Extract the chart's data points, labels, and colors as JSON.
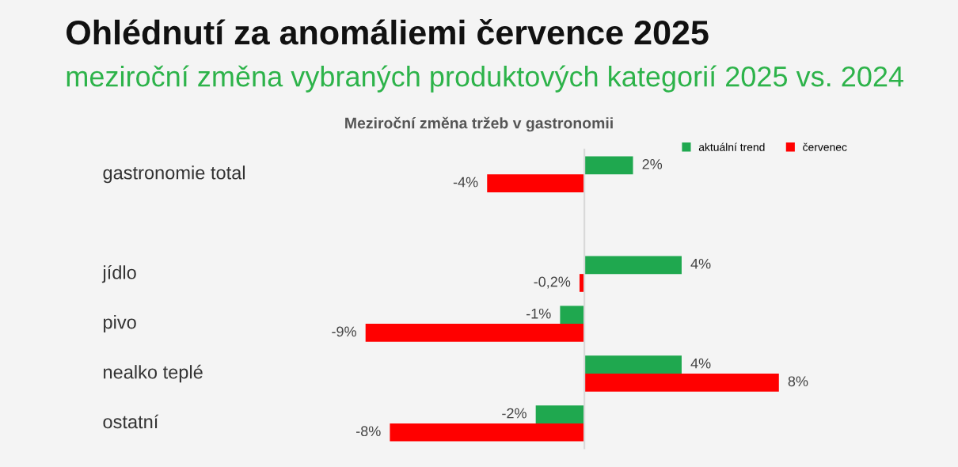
{
  "chart_data": {
    "type": "bar",
    "orientation": "horizontal",
    "title": "Meziroční změna tržeb v gastronomii",
    "annotations": [
      "Ohlédnutí za anomáliemi července 2025",
      "meziroční změna vybraných produktových kategorií 2025 vs. 2024"
    ],
    "categories": [
      "gastronomie total",
      null,
      "jídlo",
      "pivo",
      "nealko teplé",
      "ostatní"
    ],
    "series": [
      {
        "name": "aktuální trend",
        "color": "#1fa84f",
        "values": [
          2,
          null,
          4,
          -1,
          4,
          -2
        ],
        "value_labels": [
          "2%",
          null,
          "4%",
          "-1%",
          "4%",
          "-2%"
        ]
      },
      {
        "name": "červenec",
        "color": "#ff0000",
        "values": [
          -4,
          null,
          -0.2,
          -9,
          8,
          -8
        ],
        "value_labels": [
          "-4%",
          null,
          "-0,2%",
          "-9%",
          "8%",
          "-8%"
        ]
      }
    ],
    "legend": "top right"
  }
}
